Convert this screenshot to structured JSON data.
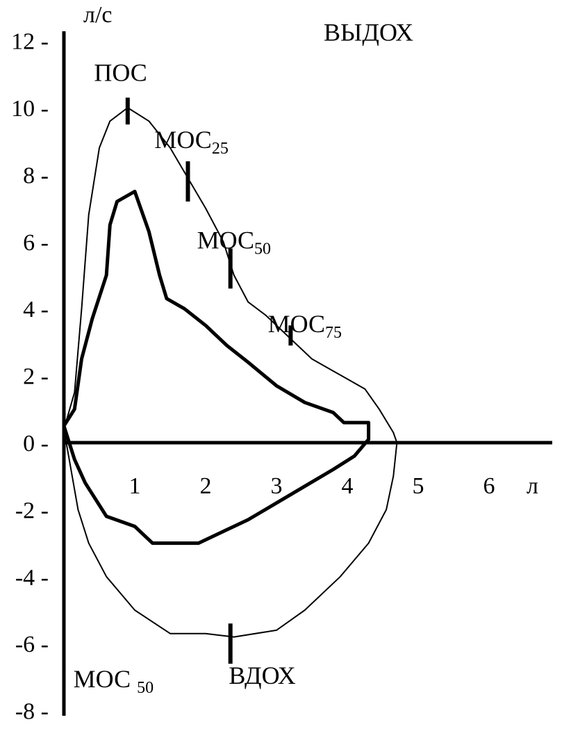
{
  "chart_data": {
    "type": "line",
    "title": "",
    "ylabel": "л/с",
    "xlabel": "л",
    "xlim": [
      0,
      6.8
    ],
    "ylim": [
      -8,
      13
    ],
    "y_ticks": [
      12,
      10,
      8,
      6,
      4,
      2,
      0,
      -2,
      -4,
      -6,
      -8
    ],
    "y_tick_labels": [
      "12 -",
      "10 -",
      "8 -",
      "6 -",
      "4 -",
      "2 -",
      "0 -",
      "-2 -",
      "-4 -",
      "-6 -",
      "-8 -"
    ],
    "x_ticks": [
      1,
      2,
      3,
      4,
      5,
      6
    ],
    "x_tick_labels": [
      "1",
      "2",
      "3",
      "4",
      "5",
      "6"
    ],
    "grid": false,
    "series": [
      {
        "style": "thin",
        "points": [
          [
            0,
            0.4
          ],
          [
            0.15,
            1.5
          ],
          [
            0.25,
            4
          ],
          [
            0.35,
            6.8
          ],
          [
            0.5,
            8.8
          ],
          [
            0.65,
            9.6
          ],
          [
            0.9,
            10
          ],
          [
            1.2,
            9.6
          ],
          [
            1.5,
            8.8
          ],
          [
            1.75,
            7.9
          ],
          [
            2.0,
            7.0
          ],
          [
            2.25,
            6.0
          ],
          [
            2.4,
            5.0
          ],
          [
            2.6,
            4.2
          ],
          [
            2.85,
            3.8
          ],
          [
            3.1,
            3.3
          ],
          [
            3.25,
            3.0
          ],
          [
            3.5,
            2.5
          ],
          [
            3.75,
            2.2
          ],
          [
            4.0,
            1.9
          ],
          [
            4.25,
            1.6
          ],
          [
            4.45,
            1.0
          ],
          [
            4.65,
            0.3
          ],
          [
            4.7,
            0
          ],
          [
            4.65,
            -1.0
          ],
          [
            4.55,
            -2.0
          ],
          [
            4.3,
            -3.0
          ],
          [
            3.9,
            -4.0
          ],
          [
            3.4,
            -5.0
          ],
          [
            3.0,
            -5.6
          ],
          [
            2.4,
            -5.8
          ],
          [
            2.0,
            -5.7
          ],
          [
            1.5,
            -5.7
          ],
          [
            1.0,
            -5.0
          ],
          [
            0.6,
            -4.0
          ],
          [
            0.35,
            -3.0
          ],
          [
            0.2,
            -2.0
          ],
          [
            0.1,
            -0.8
          ],
          [
            0,
            0.4
          ]
        ]
      },
      {
        "style": "thick",
        "points": [
          [
            0,
            0.5
          ],
          [
            0.15,
            1.0
          ],
          [
            0.25,
            2.5
          ],
          [
            0.4,
            3.7
          ],
          [
            0.6,
            5.0
          ],
          [
            0.65,
            6.5
          ],
          [
            0.75,
            7.2
          ],
          [
            1.0,
            7.5
          ],
          [
            1.2,
            6.3
          ],
          [
            1.35,
            5.0
          ],
          [
            1.45,
            4.3
          ],
          [
            1.7,
            4.0
          ],
          [
            2.0,
            3.5
          ],
          [
            2.3,
            2.9
          ],
          [
            2.6,
            2.4
          ],
          [
            3.0,
            1.7
          ],
          [
            3.4,
            1.2
          ],
          [
            3.8,
            0.9
          ],
          [
            3.95,
            0.6
          ],
          [
            4.3,
            0.6
          ],
          [
            4.3,
            0.1
          ],
          [
            4.1,
            -0.4
          ],
          [
            3.8,
            -0.8
          ],
          [
            3.4,
            -1.3
          ],
          [
            3.0,
            -1.8
          ],
          [
            2.6,
            -2.3
          ],
          [
            2.2,
            -2.7
          ],
          [
            1.9,
            -3.0
          ],
          [
            1.25,
            -3.0
          ],
          [
            1.0,
            -2.5
          ],
          [
            0.6,
            -2.2
          ],
          [
            0.3,
            -1.2
          ],
          [
            0.15,
            -0.5
          ],
          [
            0,
            0.5
          ]
        ]
      }
    ],
    "annotations": [
      {
        "text": "ВЫДОХ",
        "x": 4.3,
        "y": 12
      },
      {
        "text": "ПОС",
        "x": 0.8,
        "y": 10.8
      },
      {
        "text": "МОС",
        "sub": "25",
        "x": 1.8,
        "y": 8.8
      },
      {
        "text": "МОС",
        "sub": "50",
        "x": 2.4,
        "y": 5.8
      },
      {
        "text": "МОС",
        "sub": "75",
        "x": 3.4,
        "y": 3.3
      },
      {
        "text": "МОС ",
        "sub": "50",
        "x": 0.7,
        "y": -7.3
      },
      {
        "text": "ВДОХ",
        "x": 2.8,
        "y": -7.2
      }
    ],
    "markers": [
      {
        "x": 0.9,
        "y0": 9.5,
        "y1": 10.3
      },
      {
        "x": 1.75,
        "y0": 7.2,
        "y1": 8.4
      },
      {
        "x": 2.35,
        "y0": 4.6,
        "y1": 5.8
      },
      {
        "x": 3.2,
        "y0": 2.9,
        "y1": 3.5
      },
      {
        "x": 2.35,
        "y0": -6.6,
        "y1": -5.4
      }
    ]
  }
}
